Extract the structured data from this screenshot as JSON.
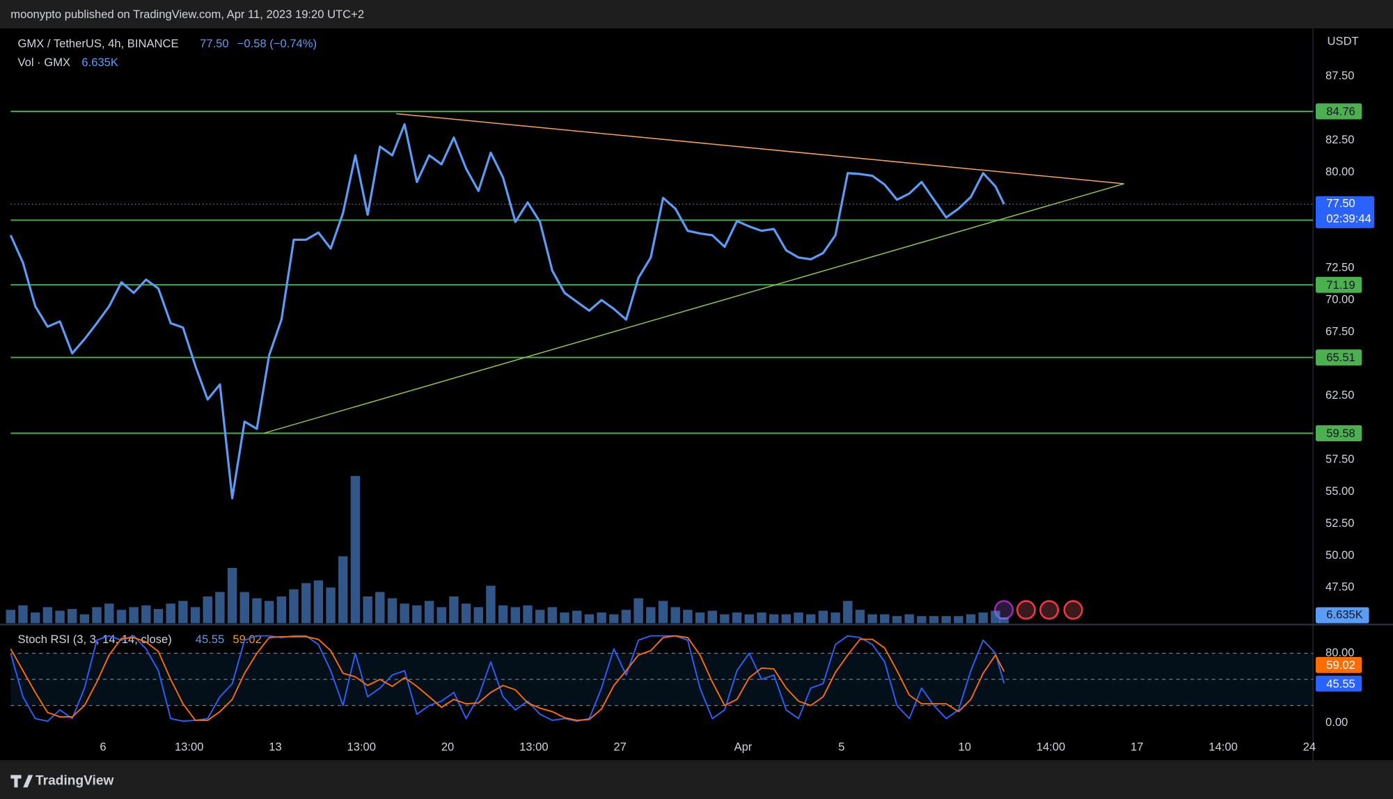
{
  "header": "moonypto published on TradingView.com, Apr 11, 2023 19:20 UTC+2",
  "brand": "TradingView",
  "chart_data": [
    {
      "type": "line",
      "title": "GMX / TetherUS, 4h, BINANCE",
      "change": "−0.58 (−0.74%)",
      "current_price": {
        "value": 77.5,
        "label": "77.50"
      },
      "countdown": "02:39:44",
      "axis_label": "USDT",
      "color": "#5b9cf6",
      "x": [
        2.25,
        2.75,
        3.25,
        3.75,
        4.25,
        4.75,
        5.25,
        5.75,
        6.25,
        6.75,
        7.25,
        7.75,
        8.25,
        8.75,
        9.25,
        9.75,
        10.25,
        10.75,
        11.25,
        11.75,
        12.25,
        12.75,
        13.25,
        13.75,
        14.25,
        14.75,
        15.25,
        15.75,
        16.25,
        16.75,
        17.25,
        17.75,
        18.25,
        18.75,
        19.25,
        19.75,
        20.25,
        20.75,
        21.25,
        21.75,
        22.25,
        22.75,
        23.25,
        23.75,
        24.25,
        24.75,
        25.25,
        25.75,
        26.25,
        26.75,
        27.25,
        27.75,
        28.25,
        28.75,
        29.25,
        29.75,
        30.25,
        30.75,
        31.25,
        31.75,
        32.25,
        32.75,
        33.25,
        33.75,
        34.25,
        34.75,
        35.25,
        35.75,
        36.25,
        36.75,
        37.25,
        37.75,
        38.25,
        38.75,
        39.25,
        39.75,
        40.25,
        40.75,
        41.25,
        41.75,
        42.25,
        42.6
      ],
      "values": [
        75.07,
        72.92,
        69.51,
        67.92,
        68.33,
        65.83,
        66.94,
        68.19,
        69.51,
        71.39,
        70.56,
        71.6,
        70.9,
        68.19,
        67.85,
        64.86,
        62.22,
        63.4,
        54.5,
        60.49,
        59.93,
        65.69,
        68.47,
        74.72,
        74.72,
        75.28,
        74.03,
        76.81,
        81.32,
        76.67,
        82.01,
        81.32,
        83.75,
        79.24,
        81.32,
        80.62,
        82.71,
        80.28,
        78.54,
        81.53,
        79.58,
        76.11,
        77.64,
        76.11,
        72.29,
        70.56,
        69.86,
        69.17,
        70.0,
        69.31,
        68.47,
        71.74,
        73.33,
        77.99,
        77.15,
        75.42,
        75.21,
        75.07,
        74.17,
        76.18,
        75.76,
        75.42,
        75.56,
        73.89,
        73.33,
        73.19,
        73.68,
        75.07,
        79.93,
        79.86,
        79.72,
        79.03,
        77.85,
        78.33,
        79.24,
        77.85,
        76.46,
        77.15,
        78.06,
        79.93,
        78.89,
        77.5
      ],
      "levels": [
        84.76,
        76.25,
        71.19,
        65.51,
        59.58
      ],
      "level_color": "#4caf50",
      "trendlines": [
        {
          "color": "#f7a35c",
          "points": [
            [
              17.91,
              84.58
            ],
            [
              47.47,
              79.1
            ]
          ]
        },
        {
          "color": "#8bc34a",
          "points": [
            [
              12.53,
              59.58
            ],
            [
              47.47,
              79.1
            ]
          ]
        }
      ],
      "xlim": [
        2.25,
        55.15
      ],
      "ylim": [
        44.72,
        91.25
      ],
      "yticks": [
        {
          "value": 47.5,
          "label": "47.50"
        },
        {
          "value": 50,
          "label": "50.00"
        },
        {
          "value": 52.5,
          "label": "52.50"
        },
        {
          "value": 55,
          "label": "55.00"
        },
        {
          "value": 57.5,
          "label": "57.50"
        },
        {
          "value": 62.5,
          "label": "62.50"
        },
        {
          "value": 67.5,
          "label": "67.50"
        },
        {
          "value": 70,
          "label": "70.00"
        },
        {
          "value": 72.5,
          "label": "72.50"
        },
        {
          "value": 80,
          "label": "80.00"
        },
        {
          "value": 82.5,
          "label": "82.50"
        },
        {
          "value": 87.5,
          "label": "87.50"
        }
      ],
      "xticks": [
        6,
        {
          "value": 9.5,
          "label": "13:00"
        },
        13,
        {
          "value": 16.5,
          "label": "13:00"
        },
        20,
        {
          "value": 23.5,
          "label": "13:00"
        },
        27,
        {
          "value": 32,
          "label": "Apr"
        },
        {
          "value": 36,
          "label": "5"
        },
        {
          "value": 41,
          "label": "10"
        },
        {
          "value": 44.5,
          "label": "14:00"
        },
        {
          "value": 48,
          "label": "17"
        },
        {
          "value": 51.5,
          "label": "14:00"
        },
        {
          "value": 55,
          "label": "24"
        }
      ]
    },
    {
      "type": "bar",
      "title": "Vol · GMX",
      "current": {
        "value": 6635,
        "label": "6.635K"
      },
      "color": "#5b9cf6",
      "x": [
        2.25,
        2.75,
        3.25,
        3.75,
        4.25,
        4.75,
        5.25,
        5.75,
        6.25,
        6.75,
        7.25,
        7.75,
        8.25,
        8.75,
        9.25,
        9.75,
        10.25,
        10.75,
        11.25,
        11.75,
        12.25,
        12.75,
        13.25,
        13.75,
        14.25,
        14.75,
        15.25,
        15.75,
        16.25,
        16.75,
        17.25,
        17.75,
        18.25,
        18.75,
        19.25,
        19.75,
        20.25,
        20.75,
        21.25,
        21.75,
        22.25,
        22.75,
        23.25,
        23.75,
        24.25,
        24.75,
        25.25,
        25.75,
        26.25,
        26.75,
        27.25,
        27.75,
        28.25,
        28.75,
        29.25,
        29.75,
        30.25,
        30.75,
        31.25,
        31.75,
        32.25,
        32.75,
        33.25,
        33.75,
        34.25,
        34.75,
        35.25,
        35.75,
        36.25,
        36.75,
        37.25,
        37.75,
        38.25,
        38.75,
        39.25,
        39.75,
        40.25,
        40.75,
        41.25,
        41.75,
        42.25,
        42.6
      ],
      "values": [
        15000,
        20000,
        12000,
        18000,
        14000,
        16000,
        10000,
        18000,
        22000,
        15000,
        18000,
        20000,
        16000,
        22000,
        25000,
        18000,
        30000,
        35000,
        62000,
        35000,
        28000,
        25000,
        30000,
        38000,
        45000,
        48000,
        40000,
        75000,
        165000,
        30000,
        35000,
        28000,
        22000,
        20000,
        25000,
        18000,
        30000,
        22000,
        18000,
        42000,
        20000,
        18000,
        20000,
        15000,
        18000,
        12000,
        14000,
        10000,
        12000,
        10000,
        15000,
        28000,
        18000,
        25000,
        18000,
        15000,
        12000,
        14000,
        10000,
        12000,
        10000,
        12000,
        10000,
        10000,
        12000,
        10000,
        14000,
        12000,
        25000,
        15000,
        10000,
        10000,
        8000,
        10000,
        8000,
        8000,
        8000,
        8000,
        10000,
        12000,
        14000,
        6635
      ],
      "ylim": [
        0,
        377000
      ]
    },
    {
      "type": "line",
      "title": "Stoch RSI (3, 3, 14, 14, close)",
      "x": [
        2.25,
        2.75,
        3.25,
        3.75,
        4.25,
        4.75,
        5.25,
        5.75,
        6.25,
        6.75,
        7.25,
        7.75,
        8.25,
        8.75,
        9.25,
        9.75,
        10.25,
        10.75,
        11.25,
        11.75,
        12.25,
        12.75,
        13.25,
        13.75,
        14.25,
        14.75,
        15.25,
        15.75,
        16.25,
        16.75,
        17.25,
        17.75,
        18.25,
        18.75,
        19.25,
        19.75,
        20.25,
        20.75,
        21.25,
        21.75,
        22.25,
        22.75,
        23.25,
        23.75,
        24.25,
        24.75,
        25.25,
        25.75,
        26.25,
        26.75,
        27.25,
        27.75,
        28.25,
        28.75,
        29.25,
        29.75,
        30.25,
        30.75,
        31.25,
        31.75,
        32.25,
        32.75,
        33.25,
        33.75,
        34.25,
        34.75,
        35.25,
        35.75,
        36.25,
        36.75,
        37.25,
        37.75,
        38.25,
        38.75,
        39.25,
        39.75,
        40.25,
        40.75,
        41.25,
        41.75,
        42.25,
        42.6
      ],
      "series": [
        {
          "color": "#2962ff",
          "values": [
            80,
            30,
            5,
            2,
            15,
            5,
            40,
            95,
            100,
            95,
            100,
            85,
            60,
            5,
            2,
            3,
            5,
            30,
            45,
            95,
            100,
            100,
            98,
            100,
            100,
            90,
            60,
            20,
            80,
            30,
            40,
            55,
            60,
            10,
            20,
            25,
            35,
            5,
            30,
            70,
            30,
            15,
            25,
            10,
            3,
            5,
            2,
            5,
            40,
            85,
            55,
            95,
            100,
            100,
            100,
            95,
            40,
            5,
            15,
            60,
            80,
            50,
            55,
            15,
            5,
            40,
            45,
            90,
            100,
            98,
            90,
            70,
            20,
            5,
            40,
            20,
            5,
            15,
            60,
            95,
            80,
            45.55
          ]
        },
        {
          "color": "#ff6d00",
          "values": [
            85,
            60,
            35,
            12,
            7,
            7,
            20,
            47,
            78,
            97,
            98,
            93,
            82,
            50,
            22,
            3,
            3,
            13,
            27,
            57,
            80,
            98,
            99,
            99,
            99,
            96,
            83,
            57,
            53,
            43,
            50,
            42,
            52,
            42,
            30,
            18,
            27,
            22,
            23,
            35,
            43,
            38,
            23,
            17,
            13,
            6,
            3,
            4,
            16,
            43,
            60,
            78,
            83,
            98,
            100,
            98,
            78,
            47,
            20,
            27,
            52,
            63,
            62,
            40,
            25,
            20,
            30,
            58,
            78,
            96,
            96,
            86,
            60,
            32,
            22,
            22,
            22,
            13,
            27,
            57,
            78,
            59.02
          ]
        }
      ],
      "bands": [
        20,
        50,
        80
      ],
      "ylim": [
        -41.5,
        110.4
      ],
      "yticks": [
        {
          "value": 0,
          "label": "0.00"
        },
        {
          "value": 80,
          "label": "80.00"
        }
      ]
    }
  ]
}
